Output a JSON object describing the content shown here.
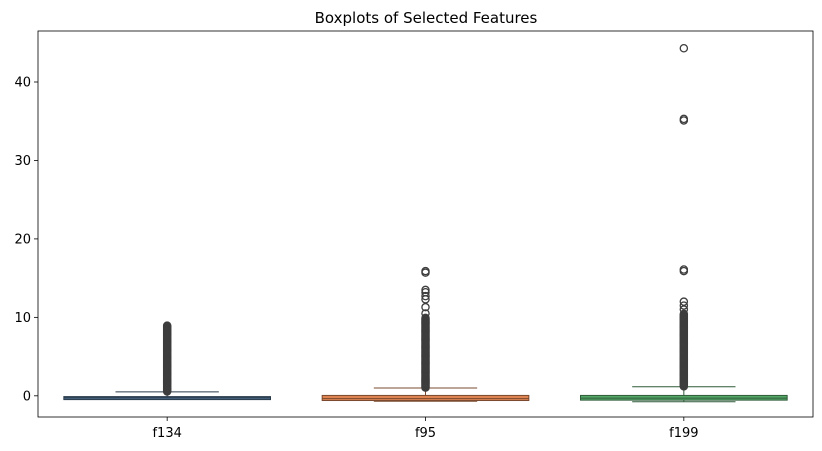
{
  "chart_data": {
    "type": "boxplot",
    "title": "Boxplots of Selected Features",
    "xlabel": "",
    "ylabel": "",
    "ylim": [
      -2.7,
      46.5
    ],
    "yticks": [
      0,
      10,
      20,
      30,
      40
    ],
    "grid": false,
    "legend": "none",
    "categories": [
      "f134",
      "f95",
      "f199"
    ],
    "series": [
      {
        "category": "f134",
        "color": "#4c6b8a",
        "q1": -0.35,
        "median": -0.25,
        "q3": -0.1,
        "whisker_low": -0.45,
        "whisker_high": 0.5,
        "outlier_range": [
          0.55,
          9.0
        ],
        "outliers": []
      },
      {
        "category": "f95",
        "color": "#dd8452",
        "q1": -0.6,
        "median": -0.35,
        "q3": 0.05,
        "whisker_low": -0.7,
        "whisker_high": 1.0,
        "outlier_range": [
          1.05,
          10.0
        ],
        "outliers": [
          10.5,
          11.3,
          12.3,
          12.7,
          13.2,
          13.5,
          15.7,
          15.9
        ]
      },
      {
        "category": "f199",
        "color": "#55a868",
        "q1": -0.55,
        "median": -0.3,
        "q3": 0.05,
        "whisker_low": -0.75,
        "whisker_high": 1.15,
        "outlier_range": [
          1.2,
          10.5
        ],
        "outliers": [
          11.0,
          11.5,
          12.0,
          15.9,
          16.1,
          35.1,
          35.3,
          44.3
        ]
      }
    ]
  }
}
